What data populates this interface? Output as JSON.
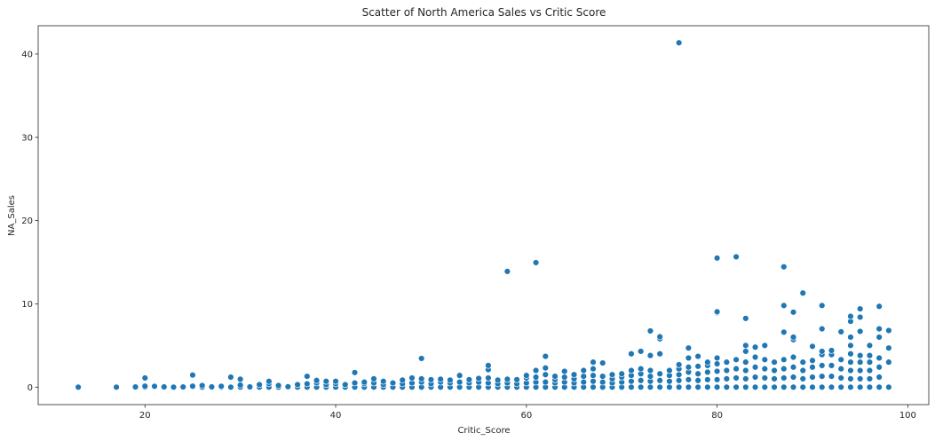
{
  "chart_data": {
    "type": "scatter",
    "title": "Scatter of North America Sales vs Critic Score",
    "xlabel": "Critic_Score",
    "ylabel": "NA_Sales",
    "xlim": [
      8.8,
      102.2
    ],
    "ylim": [
      -2.1,
      43.4
    ],
    "xticks": [
      20,
      40,
      60,
      80,
      100
    ],
    "yticks": [
      0,
      10,
      20,
      30,
      40
    ],
    "grid": false,
    "color": "#1f77b4",
    "series": [
      {
        "points": [
          [
            13,
            0.0
          ],
          [
            17,
            0.0
          ],
          [
            19,
            0.02
          ],
          [
            20,
            0.0
          ],
          [
            20,
            0.12
          ],
          [
            20,
            1.1
          ],
          [
            21,
            0.1
          ],
          [
            22,
            0.03
          ],
          [
            23,
            0.0
          ],
          [
            24,
            0.02
          ],
          [
            25,
            0.05
          ],
          [
            25,
            0.12
          ],
          [
            25,
            1.45
          ],
          [
            26,
            0.0
          ],
          [
            26,
            0.2
          ],
          [
            27,
            0.03
          ],
          [
            28,
            0.0
          ],
          [
            28,
            0.1
          ],
          [
            29,
            0.0
          ],
          [
            29,
            1.2
          ],
          [
            30,
            0.0
          ],
          [
            30,
            0.25
          ],
          [
            30,
            0.95
          ],
          [
            31,
            0.03
          ],
          [
            32,
            0.0
          ],
          [
            32,
            0.3
          ],
          [
            33,
            0.0
          ],
          [
            33,
            0.4
          ],
          [
            33,
            0.7
          ],
          [
            34,
            0.0
          ],
          [
            34,
            0.2
          ],
          [
            35,
            0.05
          ],
          [
            36,
            0.0
          ],
          [
            36,
            0.3
          ],
          [
            37,
            0.0
          ],
          [
            37,
            0.4
          ],
          [
            37,
            1.3
          ],
          [
            38,
            0.0
          ],
          [
            38,
            0.5
          ],
          [
            38,
            0.8
          ],
          [
            39,
            0.0
          ],
          [
            39,
            0.3
          ],
          [
            39,
            0.7
          ],
          [
            40,
            0.0
          ],
          [
            40,
            0.4
          ],
          [
            40,
            0.7
          ],
          [
            41,
            0.0
          ],
          [
            41,
            0.3
          ],
          [
            42,
            0.0
          ],
          [
            42,
            0.5
          ],
          [
            42,
            1.75
          ],
          [
            43,
            0.0
          ],
          [
            43,
            0.4
          ],
          [
            43,
            0.6
          ],
          [
            44,
            0.0
          ],
          [
            44,
            0.5
          ],
          [
            44,
            1.0
          ],
          [
            45,
            0.0
          ],
          [
            45,
            0.3
          ],
          [
            45,
            0.7
          ],
          [
            46,
            0.0
          ],
          [
            46,
            0.5
          ],
          [
            47,
            0.0
          ],
          [
            47,
            0.4
          ],
          [
            47,
            0.85
          ],
          [
            48,
            0.0
          ],
          [
            48,
            0.5
          ],
          [
            48,
            1.1
          ],
          [
            49,
            0.0
          ],
          [
            49,
            0.6
          ],
          [
            49,
            1.0
          ],
          [
            49,
            3.45
          ],
          [
            50,
            0.0
          ],
          [
            50,
            0.4
          ],
          [
            50,
            0.9
          ],
          [
            51,
            0.0
          ],
          [
            51,
            0.6
          ],
          [
            51,
            0.95
          ],
          [
            52,
            0.0
          ],
          [
            52,
            0.5
          ],
          [
            52,
            0.85
          ],
          [
            53,
            0.0
          ],
          [
            53,
            0.6
          ],
          [
            53,
            1.4
          ],
          [
            54,
            0.0
          ],
          [
            54,
            0.5
          ],
          [
            54,
            0.9
          ],
          [
            55,
            0.0
          ],
          [
            55,
            0.6
          ],
          [
            55,
            1.05
          ],
          [
            56,
            0.0
          ],
          [
            56,
            0.5
          ],
          [
            56,
            1.1
          ],
          [
            56,
            2.1
          ],
          [
            56,
            2.6
          ],
          [
            57,
            0.0
          ],
          [
            57,
            0.4
          ],
          [
            57,
            0.85
          ],
          [
            58,
            0.0
          ],
          [
            58,
            0.5
          ],
          [
            58,
            0.95
          ],
          [
            58,
            13.9
          ],
          [
            59,
            0.0
          ],
          [
            59,
            0.4
          ],
          [
            59,
            0.9
          ],
          [
            60,
            0.0
          ],
          [
            60,
            0.5
          ],
          [
            60,
            1.1
          ],
          [
            60,
            1.4
          ],
          [
            61,
            0.0
          ],
          [
            61,
            0.6
          ],
          [
            61,
            1.2
          ],
          [
            61,
            2.0
          ],
          [
            61,
            14.95
          ],
          [
            62,
            0.0
          ],
          [
            62,
            0.6
          ],
          [
            62,
            1.5
          ],
          [
            62,
            2.3
          ],
          [
            62,
            3.7
          ],
          [
            63,
            0.0
          ],
          [
            63,
            0.5
          ],
          [
            63,
            0.9
          ],
          [
            63,
            1.3
          ],
          [
            64,
            0.0
          ],
          [
            64,
            0.6
          ],
          [
            64,
            1.2
          ],
          [
            64,
            1.9
          ],
          [
            65,
            0.0
          ],
          [
            65,
            0.5
          ],
          [
            65,
            1.0
          ],
          [
            65,
            1.5
          ],
          [
            66,
            0.0
          ],
          [
            66,
            0.6
          ],
          [
            66,
            1.3
          ],
          [
            66,
            2.0
          ],
          [
            67,
            0.0
          ],
          [
            67,
            0.7
          ],
          [
            67,
            1.4
          ],
          [
            67,
            2.2
          ],
          [
            67,
            3.0
          ],
          [
            68,
            0.0
          ],
          [
            68,
            0.6
          ],
          [
            68,
            1.3
          ],
          [
            68,
            2.9
          ],
          [
            69,
            0.0
          ],
          [
            69,
            0.5
          ],
          [
            69,
            1.0
          ],
          [
            69,
            1.5
          ],
          [
            70,
            0.0
          ],
          [
            70,
            0.6
          ],
          [
            70,
            1.2
          ],
          [
            70,
            1.6
          ],
          [
            71,
            0.0
          ],
          [
            71,
            0.7
          ],
          [
            71,
            1.4
          ],
          [
            71,
            2.0
          ],
          [
            71,
            4.0
          ],
          [
            72,
            0.0
          ],
          [
            72,
            0.8
          ],
          [
            72,
            1.6
          ],
          [
            72,
            2.2
          ],
          [
            72,
            4.3
          ],
          [
            73,
            0.0
          ],
          [
            73,
            0.7
          ],
          [
            73,
            1.3
          ],
          [
            73,
            2.0
          ],
          [
            73,
            3.8
          ],
          [
            73,
            6.75
          ],
          [
            74,
            0.0
          ],
          [
            74,
            0.8
          ],
          [
            74,
            1.6
          ],
          [
            74,
            4.0
          ],
          [
            74,
            5.8
          ],
          [
            74,
            6.05
          ],
          [
            75,
            0.0
          ],
          [
            75,
            0.7
          ],
          [
            75,
            1.4
          ],
          [
            75,
            2.0
          ],
          [
            76,
            0.0
          ],
          [
            76,
            0.8
          ],
          [
            76,
            1.5
          ],
          [
            76,
            2.2
          ],
          [
            76,
            2.7
          ],
          [
            76,
            41.35
          ],
          [
            77,
            0.0
          ],
          [
            77,
            0.9
          ],
          [
            77,
            1.8
          ],
          [
            77,
            2.4
          ],
          [
            77,
            3.5
          ],
          [
            77,
            4.7
          ],
          [
            78,
            0.0
          ],
          [
            78,
            0.8
          ],
          [
            78,
            1.6
          ],
          [
            78,
            2.5
          ],
          [
            78,
            3.7
          ],
          [
            79,
            0.0
          ],
          [
            79,
            0.9
          ],
          [
            79,
            1.8
          ],
          [
            79,
            2.6
          ],
          [
            79,
            3.0
          ],
          [
            80,
            0.0
          ],
          [
            80,
            0.9
          ],
          [
            80,
            1.9
          ],
          [
            80,
            2.8
          ],
          [
            80,
            3.5
          ],
          [
            80,
            8.95
          ],
          [
            80,
            9.05
          ],
          [
            80,
            15.5
          ],
          [
            81,
            0.0
          ],
          [
            81,
            1.0
          ],
          [
            81,
            2.0
          ],
          [
            81,
            3.0
          ],
          [
            82,
            0.0
          ],
          [
            82,
            1.1
          ],
          [
            82,
            2.2
          ],
          [
            82,
            3.3
          ],
          [
            82,
            15.65
          ],
          [
            83,
            0.0
          ],
          [
            83,
            1.0
          ],
          [
            83,
            2.0
          ],
          [
            83,
            3.0
          ],
          [
            83,
            4.3
          ],
          [
            83,
            5.0
          ],
          [
            83,
            8.25
          ],
          [
            84,
            0.0
          ],
          [
            84,
            1.2
          ],
          [
            84,
            2.4
          ],
          [
            84,
            3.6
          ],
          [
            84,
            4.8
          ],
          [
            85,
            0.0
          ],
          [
            85,
            1.1
          ],
          [
            85,
            2.2
          ],
          [
            85,
            3.3
          ],
          [
            85,
            5.0
          ],
          [
            86,
            0.0
          ],
          [
            86,
            1.0
          ],
          [
            86,
            2.0
          ],
          [
            86,
            3.0
          ],
          [
            87,
            0.0
          ],
          [
            87,
            1.1
          ],
          [
            87,
            2.2
          ],
          [
            87,
            3.3
          ],
          [
            87,
            6.6
          ],
          [
            87,
            9.8
          ],
          [
            87,
            14.45
          ],
          [
            88,
            0.0
          ],
          [
            88,
            1.2
          ],
          [
            88,
            2.4
          ],
          [
            88,
            3.6
          ],
          [
            88,
            5.7
          ],
          [
            88,
            6.0
          ],
          [
            88,
            9.0
          ],
          [
            89,
            0.0
          ],
          [
            89,
            1.0
          ],
          [
            89,
            2.0
          ],
          [
            89,
            3.0
          ],
          [
            89,
            11.3
          ],
          [
            90,
            0.0
          ],
          [
            90,
            1.2
          ],
          [
            90,
            2.4
          ],
          [
            90,
            3.2
          ],
          [
            90,
            4.9
          ],
          [
            91,
            0.0
          ],
          [
            91,
            1.3
          ],
          [
            91,
            2.6
          ],
          [
            91,
            3.9
          ],
          [
            91,
            4.3
          ],
          [
            91,
            7.0
          ],
          [
            91,
            9.8
          ],
          [
            92,
            0.0
          ],
          [
            92,
            1.3
          ],
          [
            92,
            2.6
          ],
          [
            92,
            3.9
          ],
          [
            92,
            4.4
          ],
          [
            93,
            0.0
          ],
          [
            93,
            1.1
          ],
          [
            93,
            2.2
          ],
          [
            93,
            3.3
          ],
          [
            93,
            6.65
          ],
          [
            94,
            0.0
          ],
          [
            94,
            1.0
          ],
          [
            94,
            2.0
          ],
          [
            94,
            3.0
          ],
          [
            94,
            4.0
          ],
          [
            94,
            5.0
          ],
          [
            94,
            6.0
          ],
          [
            94,
            7.9
          ],
          [
            94,
            8.5
          ],
          [
            95,
            0.0
          ],
          [
            95,
            1.0
          ],
          [
            95,
            2.0
          ],
          [
            95,
            3.0
          ],
          [
            95,
            3.8
          ],
          [
            95,
            6.7
          ],
          [
            95,
            8.4
          ],
          [
            95,
            9.4
          ],
          [
            96,
            0.0
          ],
          [
            96,
            1.0
          ],
          [
            96,
            2.0
          ],
          [
            96,
            3.0
          ],
          [
            96,
            3.8
          ],
          [
            96,
            5.0
          ],
          [
            97,
            0.0
          ],
          [
            97,
            1.2
          ],
          [
            97,
            2.4
          ],
          [
            97,
            3.5
          ],
          [
            97,
            6.0
          ],
          [
            97,
            7.0
          ],
          [
            97,
            9.7
          ],
          [
            98,
            0.0
          ],
          [
            98,
            3.0
          ],
          [
            98,
            4.7
          ],
          [
            98,
            6.8
          ]
        ]
      }
    ]
  }
}
